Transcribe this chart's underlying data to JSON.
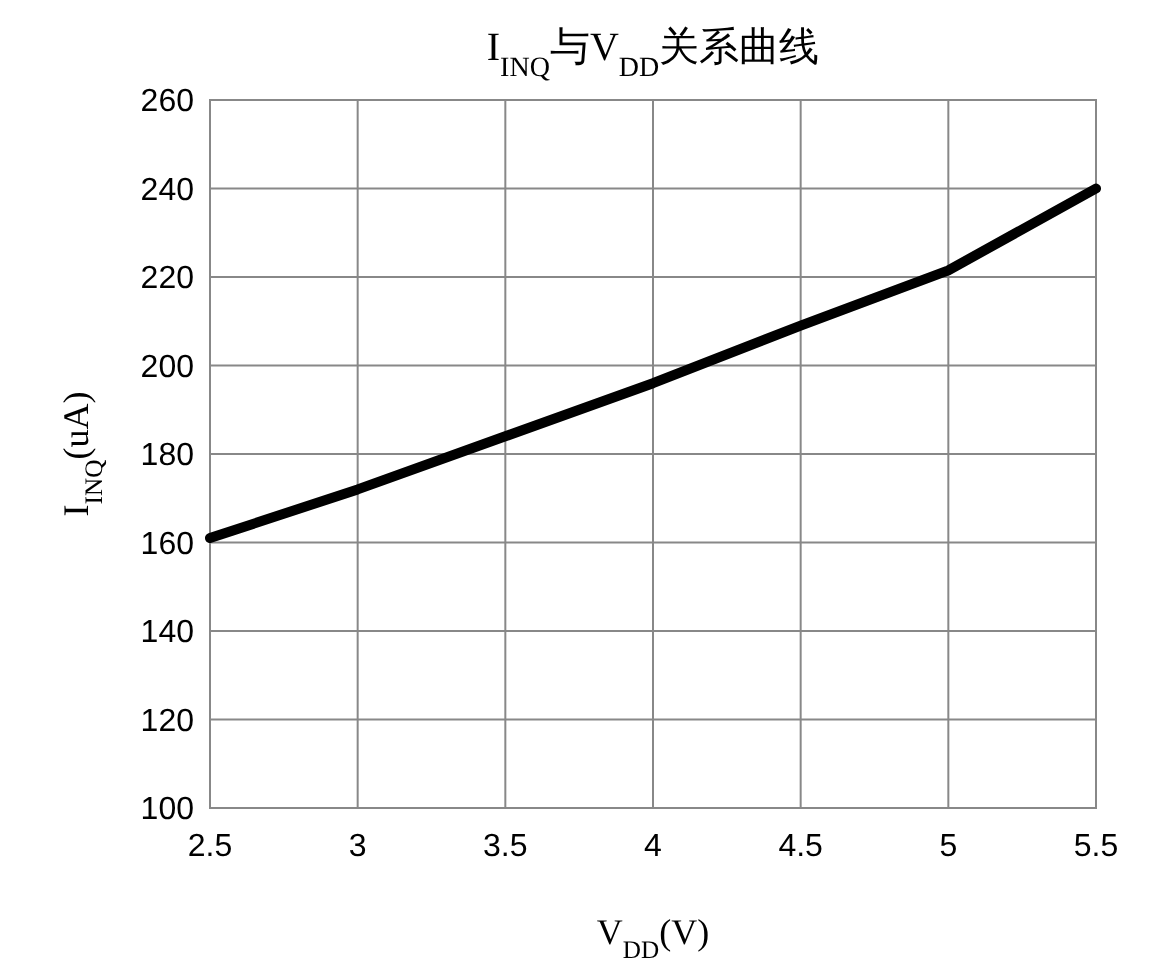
{
  "chart_data": {
    "type": "line",
    "title": "I$_{INQ}$与V$_{DD}$关系曲线",
    "xlabel": "V$_{DD}$(V)",
    "ylabel": "I$_{INQ}$(uA)",
    "x": [
      2.5,
      3,
      3.5,
      4,
      4.5,
      5,
      5.5
    ],
    "series": [
      {
        "color": "#000000",
        "values": [
          161,
          172,
          184,
          196,
          209,
          221.5,
          240
        ]
      }
    ],
    "xlim": [
      2.5,
      5.5
    ],
    "xticks": [
      2.5,
      3,
      3.5,
      4,
      4.5,
      5,
      5.5
    ],
    "ylim": [
      100,
      260
    ],
    "yticks": [
      100,
      120,
      140,
      160,
      180,
      200,
      220,
      240,
      260
    ],
    "grid": true,
    "marker": "none",
    "line_style": "solid"
  }
}
